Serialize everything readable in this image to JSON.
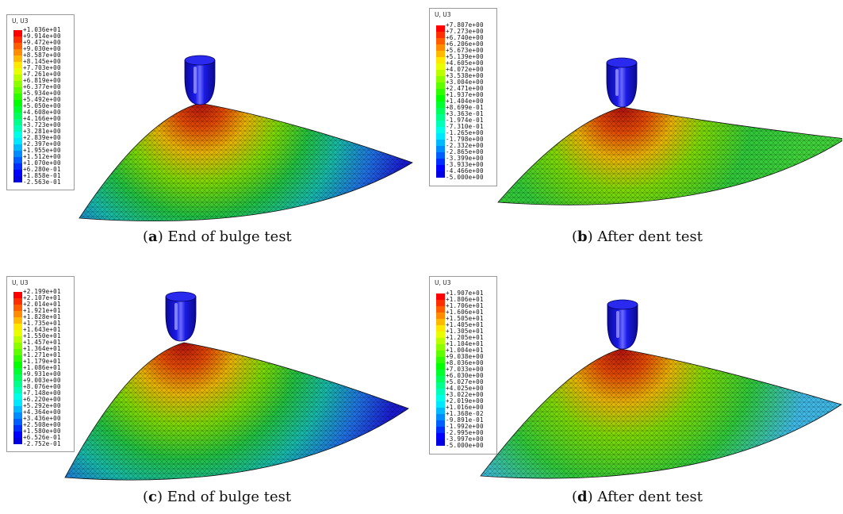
{
  "panels": [
    {
      "id": "a",
      "legend_title": "U, U3",
      "values": [
        "+1.036e+01",
        "+9.914e+00",
        "+9.472e+00",
        "+9.030e+00",
        "+8.587e+00",
        "+8.145e+00",
        "+7.703e+00",
        "+7.261e+00",
        "+6.819e+00",
        "+6.377e+00",
        "+5.934e+00",
        "+5.492e+00",
        "+5.050e+00",
        "+4.608e+00",
        "+4.166e+00",
        "+3.723e+00",
        "+3.281e+00",
        "+2.839e+00",
        "+2.397e+00",
        "+1.955e+00",
        "+1.512e+00",
        "+1.070e+00",
        "+6.280e-01",
        "+1.858e-01",
        "-2.563e-01"
      ],
      "caption_letter": "a",
      "caption_text": "End of bulge test",
      "base_color": "#1a1ad0"
    },
    {
      "id": "b",
      "legend_title": "U, U3",
      "values": [
        "+7.807e+00",
        "+7.273e+00",
        "+6.740e+00",
        "+6.206e+00",
        "+5.673e+00",
        "+5.139e+00",
        "+4.605e+00",
        "+4.072e+00",
        "+3.538e+00",
        "+3.004e+00",
        "+2.471e+00",
        "+1.937e+00",
        "+1.404e+00",
        "+8.699e-01",
        "+3.363e-01",
        "-1.974e-01",
        "-7.310e-01",
        "-1.265e+00",
        "-1.798e+00",
        "-2.332e+00",
        "-2.865e+00",
        "-3.399e+00",
        "-3.933e+00",
        "-4.466e+00",
        "-5.000e+00"
      ],
      "caption_letter": "b",
      "caption_text": "After dent test",
      "base_color": "#3fd23a"
    },
    {
      "id": "c",
      "legend_title": "U, U3",
      "values": [
        "+2.199e+01",
        "+2.107e+01",
        "+2.014e+01",
        "+1.921e+01",
        "+1.828e+01",
        "+1.735e+01",
        "+1.643e+01",
        "+1.550e+01",
        "+1.457e+01",
        "+1.364e+01",
        "+1.271e+01",
        "+1.179e+01",
        "+1.086e+01",
        "+9.931e+00",
        "+9.003e+00",
        "+8.076e+00",
        "+7.148e+00",
        "+6.220e+00",
        "+5.292e+00",
        "+4.364e+00",
        "+3.436e+00",
        "+2.508e+00",
        "+1.580e+00",
        "+6.526e-01",
        "-2.752e-01"
      ],
      "caption_letter": "c",
      "caption_text": "End of bulge test",
      "base_color": "#1a1ad0"
    },
    {
      "id": "d",
      "legend_title": "U, U3",
      "values": [
        "+1.907e+01",
        "+1.806e+01",
        "+1.706e+01",
        "+1.606e+01",
        "+1.505e+01",
        "+1.405e+01",
        "+1.305e+01",
        "+1.205e+01",
        "+1.104e+01",
        "+1.004e+01",
        "+9.038e+00",
        "+8.036e+00",
        "+7.033e+00",
        "+6.030e+00",
        "+5.027e+00",
        "+4.025e+00",
        "+3.022e+00",
        "+2.019e+00",
        "+1.016e+00",
        "+1.368e-02",
        "-9.891e-01",
        "-1.992e+00",
        "-2.995e+00",
        "-3.997e+00",
        "-5.000e+00"
      ],
      "caption_letter": "d",
      "caption_text": "After dent test",
      "base_color": "#3fb8e6"
    }
  ],
  "colorscale": [
    "#ff0000",
    "#ff2e00",
    "#ff5d00",
    "#ff8b00",
    "#ffb900",
    "#ffe800",
    "#e8ff00",
    "#b9ff00",
    "#8bff00",
    "#5dff00",
    "#2eff00",
    "#00ff00",
    "#00ff2e",
    "#00ff5d",
    "#00ff8b",
    "#00ffb9",
    "#00ffe8",
    "#00e8ff",
    "#00b9ff",
    "#008bff",
    "#005dff",
    "#002eff",
    "#0000ff",
    "#0000e0"
  ],
  "indenter_color": "#1a1ae6",
  "caption_open": "(",
  "caption_close": ")"
}
